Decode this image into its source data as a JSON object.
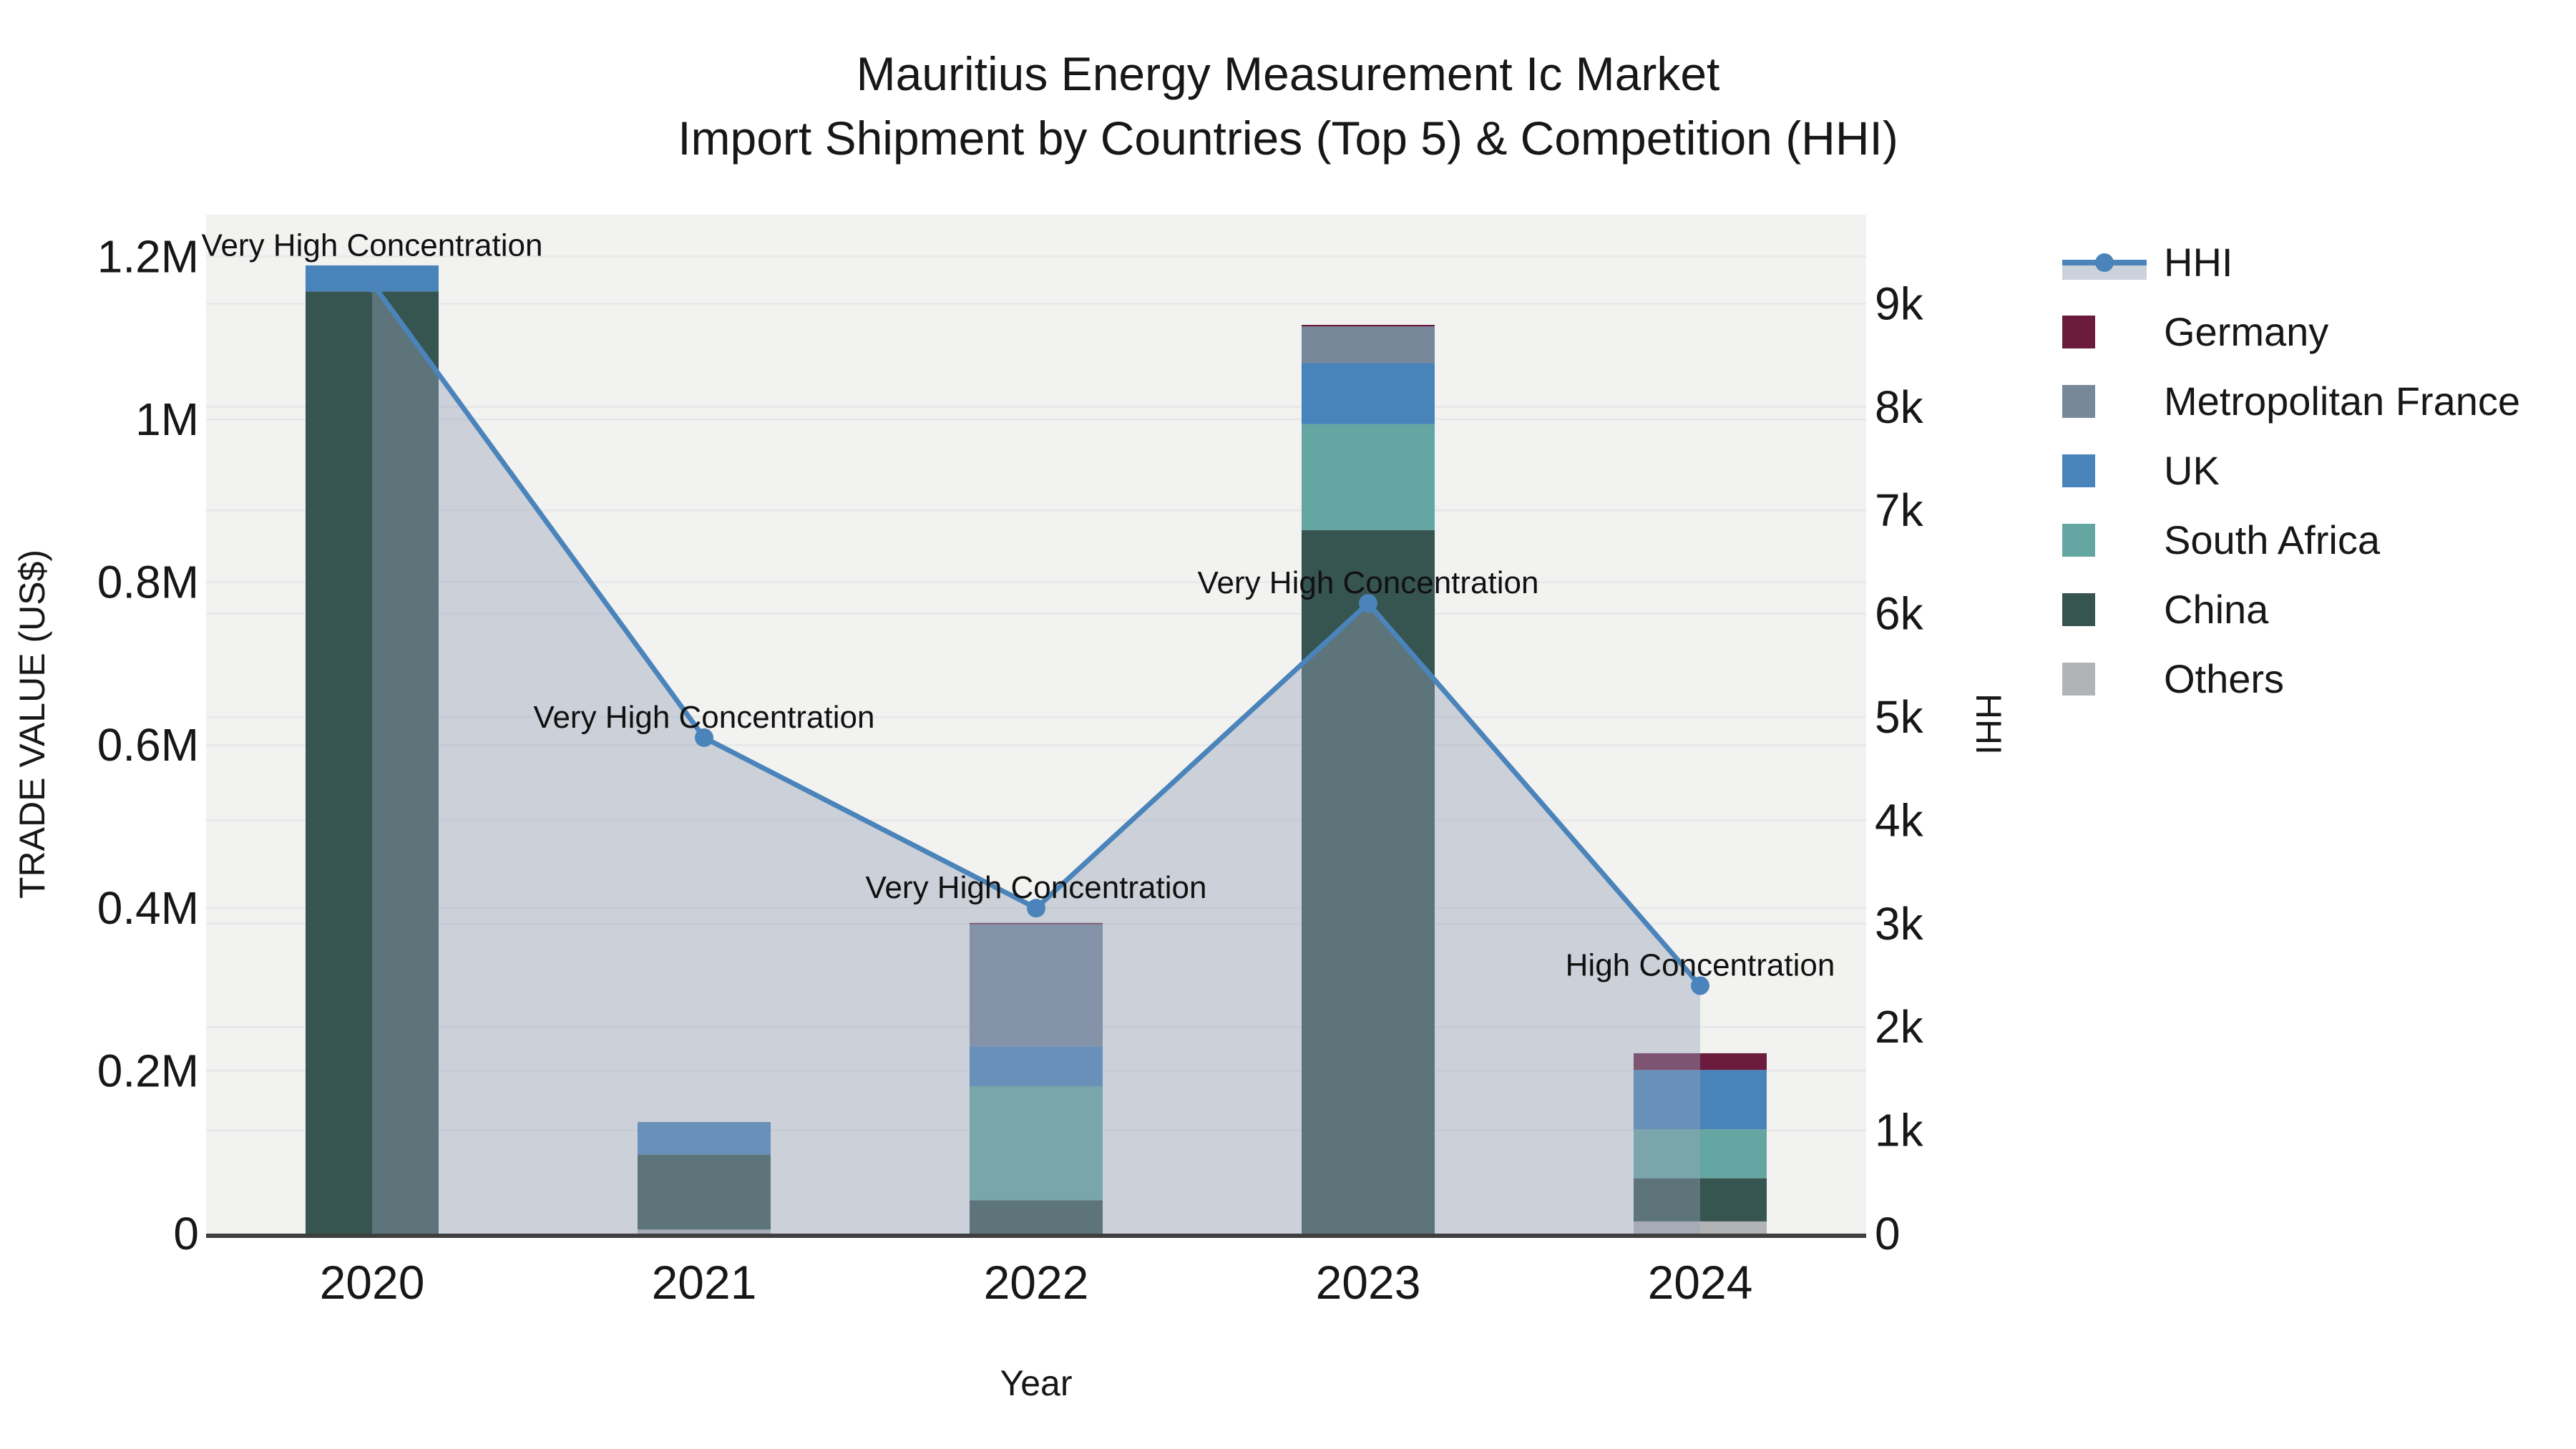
{
  "title": {
    "line1": "Mauritius Energy Measurement Ic Market",
    "line2": "Import Shipment by Countries (Top 5) & Competition (HHI)"
  },
  "axes": {
    "x": {
      "title": "Year",
      "ticks": [
        "2020",
        "2021",
        "2022",
        "2023",
        "2024"
      ]
    },
    "y_left": {
      "title": "TRADE VALUE (US$)",
      "ticks": [
        {
          "value": 0,
          "label": "0"
        },
        {
          "value": 200000,
          "label": "0.2M"
        },
        {
          "value": 400000,
          "label": "0.4M"
        },
        {
          "value": 600000,
          "label": "0.6M"
        },
        {
          "value": 800000,
          "label": "0.8M"
        },
        {
          "value": 1000000,
          "label": "1M"
        },
        {
          "value": 1200000,
          "label": "1.2M"
        }
      ]
    },
    "y_right": {
      "title": "HHI",
      "ticks": [
        {
          "value": 0,
          "label": "0"
        },
        {
          "value": 1000,
          "label": "1k"
        },
        {
          "value": 2000,
          "label": "2k"
        },
        {
          "value": 3000,
          "label": "3k"
        },
        {
          "value": 4000,
          "label": "4k"
        },
        {
          "value": 5000,
          "label": "5k"
        },
        {
          "value": 6000,
          "label": "6k"
        },
        {
          "value": 7000,
          "label": "7k"
        },
        {
          "value": 8000,
          "label": "8k"
        },
        {
          "value": 9000,
          "label": "9k"
        }
      ]
    }
  },
  "legend": {
    "items": [
      {
        "label": "HHI",
        "type": "line",
        "color": "#4a84ba"
      },
      {
        "label": "Germany",
        "type": "swatch",
        "color": "#6b1c3e"
      },
      {
        "label": "Metropolitan France",
        "type": "swatch",
        "color": "#78889b"
      },
      {
        "label": "UK",
        "type": "swatch",
        "color": "#4884ba"
      },
      {
        "label": "South Africa",
        "type": "swatch",
        "color": "#64a7a2"
      },
      {
        "label": "China",
        "type": "swatch",
        "color": "#365450"
      },
      {
        "label": "Others",
        "type": "swatch",
        "color": "#b2b3b5"
      }
    ]
  },
  "colors": {
    "hhi_line": "#4a84ba",
    "hhi_area_fill": "rgba(150,163,183,0.42)",
    "plot_background": "#f2f2f1",
    "gridline": "#e7e7e8",
    "axis_line": "#3f3f3f",
    "text": "#171717"
  },
  "chart_data": {
    "type": [
      "bar",
      "line"
    ],
    "bar_mode": "stacked",
    "categories": [
      "2020",
      "2021",
      "2022",
      "2023",
      "2024"
    ],
    "series": [
      {
        "name": "Others",
        "color": "#b2b3b5",
        "values": [
          0,
          5000,
          0,
          0,
          15000
        ]
      },
      {
        "name": "China",
        "color": "#365450",
        "values": [
          1157000,
          92000,
          41000,
          864000,
          53000
        ]
      },
      {
        "name": "South Africa",
        "color": "#64a7a2",
        "values": [
          0,
          0,
          140000,
          130000,
          60000
        ]
      },
      {
        "name": "UK",
        "color": "#4884ba",
        "values": [
          32000,
          40000,
          49000,
          75000,
          73000
        ]
      },
      {
        "name": "Metropolitan France",
        "color": "#78889b",
        "values": [
          0,
          0,
          150000,
          45000,
          0
        ]
      },
      {
        "name": "Germany",
        "color": "#6b1c3e",
        "values": [
          0,
          0,
          1500,
          2000,
          20500
        ]
      }
    ],
    "hhi_series": {
      "name": "HHI",
      "color": "#4a84ba",
      "values": [
        9200,
        4800,
        3150,
        6100,
        2400
      ],
      "fill": "tozeroy"
    },
    "annotations": [
      {
        "category": "2020",
        "text": "Very High Concentration"
      },
      {
        "category": "2021",
        "text": "Very High Concentration"
      },
      {
        "category": "2022",
        "text": "Very High Concentration"
      },
      {
        "category": "2023",
        "text": "Very High Concentration"
      },
      {
        "category": "2024",
        "text": "High Concentration"
      }
    ],
    "title": "Mauritius Energy Measurement Ic Market Import Shipment by Countries (Top 5) & Competition (HHI)",
    "xlabel": "Year",
    "ylabel": "TRADE VALUE (US$)",
    "ylabel_secondary": "HHI",
    "ylim_left": [
      0,
      1252000
    ],
    "ylim_right": [
      0,
      9860
    ],
    "grid": "horizontal-only",
    "legend_position": "right"
  }
}
